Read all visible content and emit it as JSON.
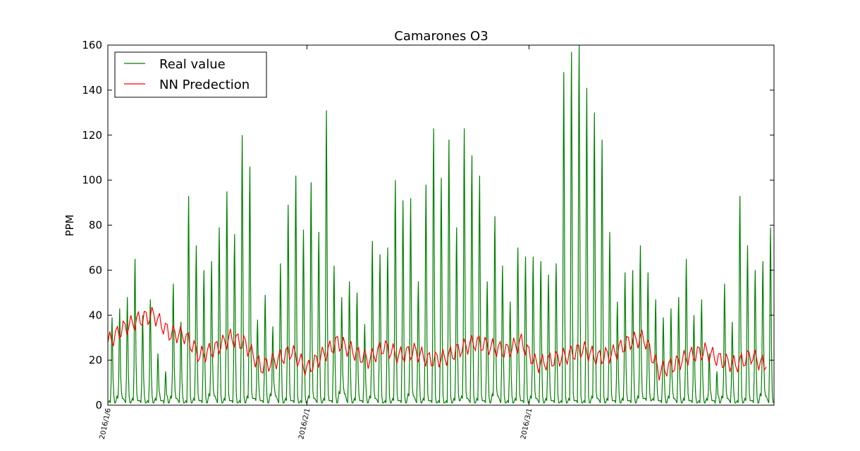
{
  "chart_data": {
    "type": "line",
    "title": "Camarones O3",
    "ylabel": "PPM",
    "xlabel": "",
    "ylim": [
      0,
      160
    ],
    "yticks": [
      0,
      20,
      40,
      60,
      80,
      100,
      120,
      140,
      160
    ],
    "x_range": [
      "2016-01-06",
      "2016-04-02"
    ],
    "xticks": [
      {
        "label": "2016/1/6",
        "date": "2016-01-06"
      },
      {
        "label": "2016/2/1",
        "date": "2016-02-01"
      },
      {
        "label": "2016/3/1",
        "date": "2016-03-01"
      }
    ],
    "legend": {
      "location": "top-left"
    },
    "grid": false,
    "series": [
      {
        "name": "Real value",
        "color": "#008000",
        "x": [
          "2016-01-06",
          "2016-01-07",
          "2016-01-08",
          "2016-01-09",
          "2016-01-10",
          "2016-01-11",
          "2016-01-12",
          "2016-01-13",
          "2016-01-14",
          "2016-01-15",
          "2016-01-16",
          "2016-01-17",
          "2016-01-18",
          "2016-01-19",
          "2016-01-20",
          "2016-01-21",
          "2016-01-22",
          "2016-01-23",
          "2016-01-24",
          "2016-01-25",
          "2016-01-26",
          "2016-01-27",
          "2016-01-28",
          "2016-01-29",
          "2016-01-30",
          "2016-01-31",
          "2016-02-01",
          "2016-02-02",
          "2016-02-03",
          "2016-02-04",
          "2016-02-05",
          "2016-02-06",
          "2016-02-07",
          "2016-02-08",
          "2016-02-09",
          "2016-02-10",
          "2016-02-11",
          "2016-02-12",
          "2016-02-13",
          "2016-02-14",
          "2016-02-15",
          "2016-02-16",
          "2016-02-17",
          "2016-02-18",
          "2016-02-19",
          "2016-02-20",
          "2016-02-21",
          "2016-02-22",
          "2016-02-23",
          "2016-02-24",
          "2016-02-25",
          "2016-02-26",
          "2016-02-27",
          "2016-02-28",
          "2016-02-29",
          "2016-03-01",
          "2016-03-02",
          "2016-03-03",
          "2016-03-04",
          "2016-03-05",
          "2016-03-06",
          "2016-03-07",
          "2016-03-08",
          "2016-03-09",
          "2016-03-10",
          "2016-03-11",
          "2016-03-12",
          "2016-03-13",
          "2016-03-14",
          "2016-03-15",
          "2016-03-16",
          "2016-03-17",
          "2016-03-18",
          "2016-03-19",
          "2016-03-20",
          "2016-03-21",
          "2016-03-22",
          "2016-03-23",
          "2016-03-24",
          "2016-03-25",
          "2016-03-26",
          "2016-03-27",
          "2016-03-28",
          "2016-03-29",
          "2016-03-30",
          "2016-03-31",
          "2016-04-01"
        ],
        "peaks": [
          39,
          43,
          48,
          65,
          40,
          47,
          23,
          15,
          54,
          37,
          93,
          71,
          60,
          64,
          79,
          95,
          76,
          120,
          106,
          38,
          49,
          35,
          63,
          89,
          102,
          78,
          99,
          77,
          131,
          62,
          48,
          55,
          50,
          36,
          73,
          67,
          70,
          100,
          91,
          92,
          55,
          98,
          123,
          101,
          118,
          79,
          123,
          111,
          102,
          55,
          84,
          62,
          46,
          70,
          66,
          66,
          64,
          58,
          63,
          148,
          157,
          160,
          141,
          130,
          118,
          77,
          46,
          59,
          60,
          71,
          59,
          47
        ],
        "troughs": [
          1,
          3,
          1,
          2,
          1,
          1,
          2,
          1,
          3,
          1,
          1,
          2,
          1,
          4,
          1,
          2,
          1,
          1,
          3,
          2,
          1,
          4,
          1,
          2,
          1,
          1,
          3,
          1,
          2,
          1,
          5,
          1,
          2,
          1,
          3,
          1,
          1,
          2,
          1,
          4,
          1,
          2,
          1,
          1,
          1,
          2,
          3,
          1,
          2,
          1,
          4,
          1,
          1,
          2,
          1,
          3,
          1,
          2,
          1,
          1,
          2,
          1,
          1,
          3,
          1,
          2,
          1,
          2,
          1,
          3,
          2,
          2
        ]
      },
      {
        "name": "NN Predection",
        "color": "#ff0000",
        "x": [
          "2016-01-06",
          "2016-01-08",
          "2016-01-10",
          "2016-01-12",
          "2016-01-14",
          "2016-01-16",
          "2016-01-18",
          "2016-01-20",
          "2016-01-22",
          "2016-01-24",
          "2016-01-26",
          "2016-01-28",
          "2016-01-30",
          "2016-02-01",
          "2016-02-03",
          "2016-02-05",
          "2016-02-07",
          "2016-02-09",
          "2016-02-11",
          "2016-02-13",
          "2016-02-15",
          "2016-02-17",
          "2016-02-19",
          "2016-02-21",
          "2016-02-23",
          "2016-02-25",
          "2016-02-27",
          "2016-02-29",
          "2016-03-02",
          "2016-03-04",
          "2016-03-06",
          "2016-03-08",
          "2016-03-10",
          "2016-03-12",
          "2016-03-14",
          "2016-03-16",
          "2016-03-18",
          "2016-03-20",
          "2016-03-22",
          "2016-03-24",
          "2016-03-26",
          "2016-03-28",
          "2016-03-30",
          "2016-04-01"
        ],
        "y": [
          28,
          34,
          38,
          40,
          32,
          31,
          22,
          25,
          30,
          27,
          17,
          20,
          24,
          16,
          22,
          28,
          24,
          20,
          26,
          22,
          24,
          20,
          21,
          25,
          28,
          26,
          24,
          28,
          18,
          20,
          22,
          25,
          21,
          23,
          28,
          30,
          15,
          18,
          22,
          24,
          20,
          18,
          22,
          17
        ]
      }
    ]
  }
}
